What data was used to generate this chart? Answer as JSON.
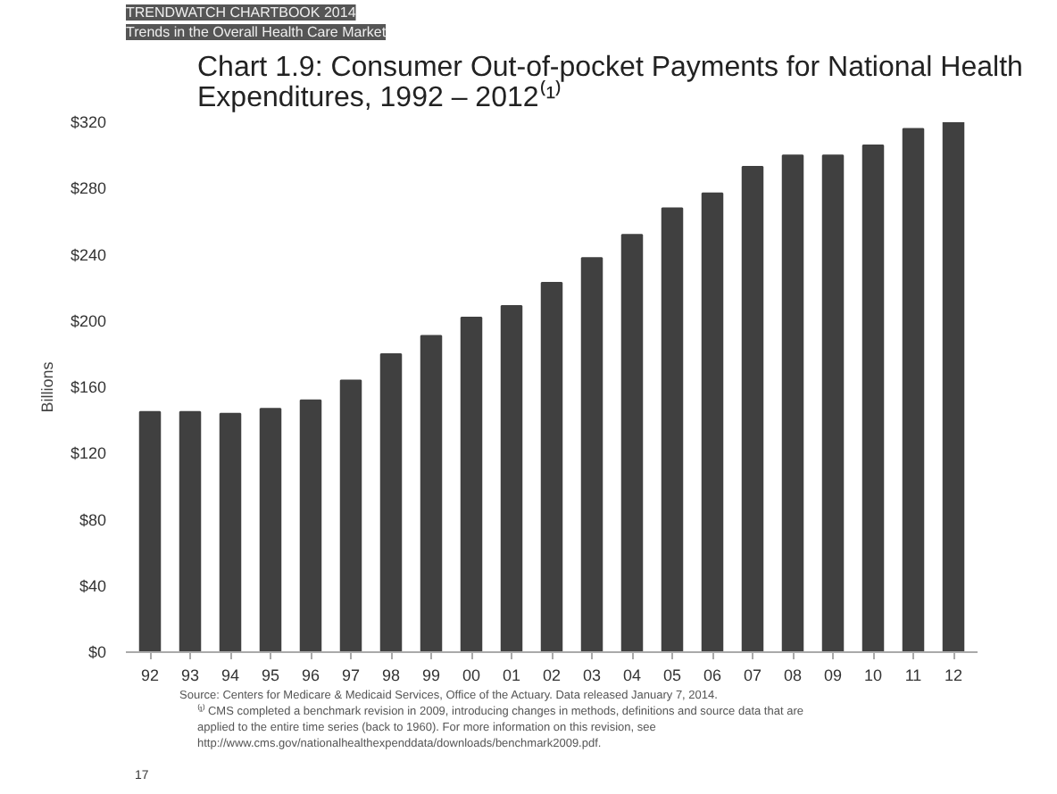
{
  "chart_data": {
    "type": "bar",
    "title": "Chart 1.9: Consumer Out-of-pocket Payments for National Health Expenditures, 1992 – 2012⁽¹⁾",
    "ylabel": "Billions",
    "categories": [
      "92",
      "93",
      "94",
      "95",
      "96",
      "97",
      "98",
      "99",
      "00",
      "01",
      "02",
      "03",
      "04",
      "05",
      "06",
      "07",
      "08",
      "09",
      "10",
      "11",
      "12"
    ],
    "values": [
      145,
      145,
      144,
      147,
      152,
      164,
      180,
      191,
      202,
      209,
      223,
      238,
      252,
      268,
      277,
      293,
      300,
      300,
      306,
      316,
      320
    ],
    "color": "#404040",
    "ylim": [
      0,
      320
    ],
    "yticks": [
      {
        "value": 0,
        "label": "$0"
      },
      {
        "value": 40,
        "label": "$40"
      },
      {
        "value": 80,
        "label": "$80"
      },
      {
        "value": 120,
        "label": "$120"
      },
      {
        "value": 160,
        "label": "$160"
      },
      {
        "value": 200,
        "label": "$200"
      },
      {
        "value": 240,
        "label": "$240"
      },
      {
        "value": 280,
        "label": "$280"
      },
      {
        "value": 320,
        "label": "$320"
      }
    ],
    "grid": false,
    "annotations": [
      "TRENDWATCH CHARTBOOK 2014",
      "Trends in the Overall Health Care Market",
      "Source: Centers for Medicare & Medicaid Services, Office of the Actuary. Data released January 7, 2014.",
      "⁽¹⁾ CMS completed a benchmark revision in 2009, introducing changes in methods, definitions and source data that are",
      "applied to the entire time series (back to 1960). For more information on this revision, see",
      "http://www.cms.gov/nationalhealthexpenddata/downloads/benchmark2009.pdf.",
      "17"
    ]
  }
}
